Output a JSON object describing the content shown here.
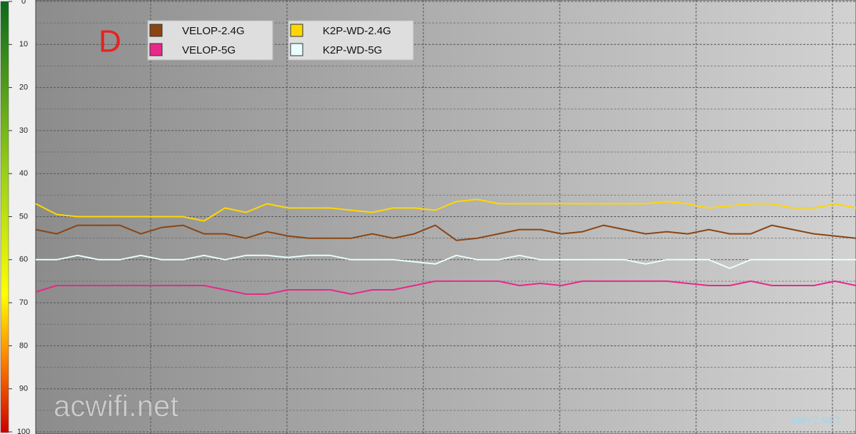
{
  "chart_data": {
    "type": "line",
    "annotation": "D",
    "watermarks": [
      "acwifi.net",
      "SMYZ.NET"
    ],
    "categories": [
      null,
      null,
      null,
      null,
      null,
      null,
      null,
      null,
      null,
      null,
      null,
      null,
      null,
      null,
      null,
      null,
      null,
      null,
      null,
      null,
      null,
      null,
      null,
      null,
      null,
      null,
      null,
      null,
      null,
      null,
      null,
      null,
      null,
      null,
      null,
      null,
      null,
      null,
      null,
      null
    ],
    "ylim": [
      0,
      100
    ],
    "yticks": [
      0,
      10,
      20,
      30,
      40,
      50,
      60,
      70,
      80,
      90,
      100
    ],
    "y_inverted": true,
    "grid": true,
    "legend": "top-left",
    "series": [
      {
        "name": "VELOP-2.4G",
        "color": "#8b4513",
        "values": [
          53,
          54,
          52,
          52,
          52,
          54,
          52.5,
          52,
          54,
          54,
          55,
          53.5,
          54.5,
          55,
          55,
          55,
          54,
          55,
          54,
          52,
          55.5,
          55,
          54,
          53,
          53,
          54,
          53.5,
          52,
          53,
          54,
          53.5,
          54,
          53,
          54,
          54,
          52,
          53,
          54,
          54.5,
          55
        ]
      },
      {
        "name": "VELOP-5G",
        "color": "#e8288a",
        "values": [
          67.5,
          66,
          66,
          66,
          66,
          66,
          66,
          66,
          66,
          67,
          68,
          68,
          67,
          67,
          67,
          68,
          67,
          67,
          66,
          65,
          65,
          65,
          65,
          66,
          65.5,
          66,
          65,
          65,
          65,
          65,
          65,
          65.5,
          66,
          66,
          65,
          66,
          66,
          66,
          65,
          66
        ]
      },
      {
        "name": "K2P-WD-2.4G",
        "color": "#ffd700",
        "values": [
          47,
          49.5,
          50,
          50,
          50,
          50,
          50,
          50,
          51,
          48,
          49,
          47,
          48,
          48,
          48,
          48.5,
          49,
          48,
          48,
          48.5,
          46.5,
          46,
          47,
          47,
          47,
          47,
          47,
          47,
          47,
          47,
          46.5,
          47,
          48,
          47.5,
          47,
          47,
          48,
          48,
          47,
          48
        ]
      },
      {
        "name": "K2P-WD-5G",
        "color": "#e8ffff",
        "values": [
          60,
          60,
          59,
          60,
          60,
          59,
          60,
          60,
          59,
          60,
          59,
          59,
          59.5,
          59,
          59,
          60,
          60,
          60,
          60.5,
          61,
          59,
          60,
          60,
          59,
          60,
          60,
          60,
          60,
          60,
          61,
          60,
          60,
          60,
          62,
          60,
          60,
          60,
          60,
          60,
          60
        ]
      }
    ]
  }
}
